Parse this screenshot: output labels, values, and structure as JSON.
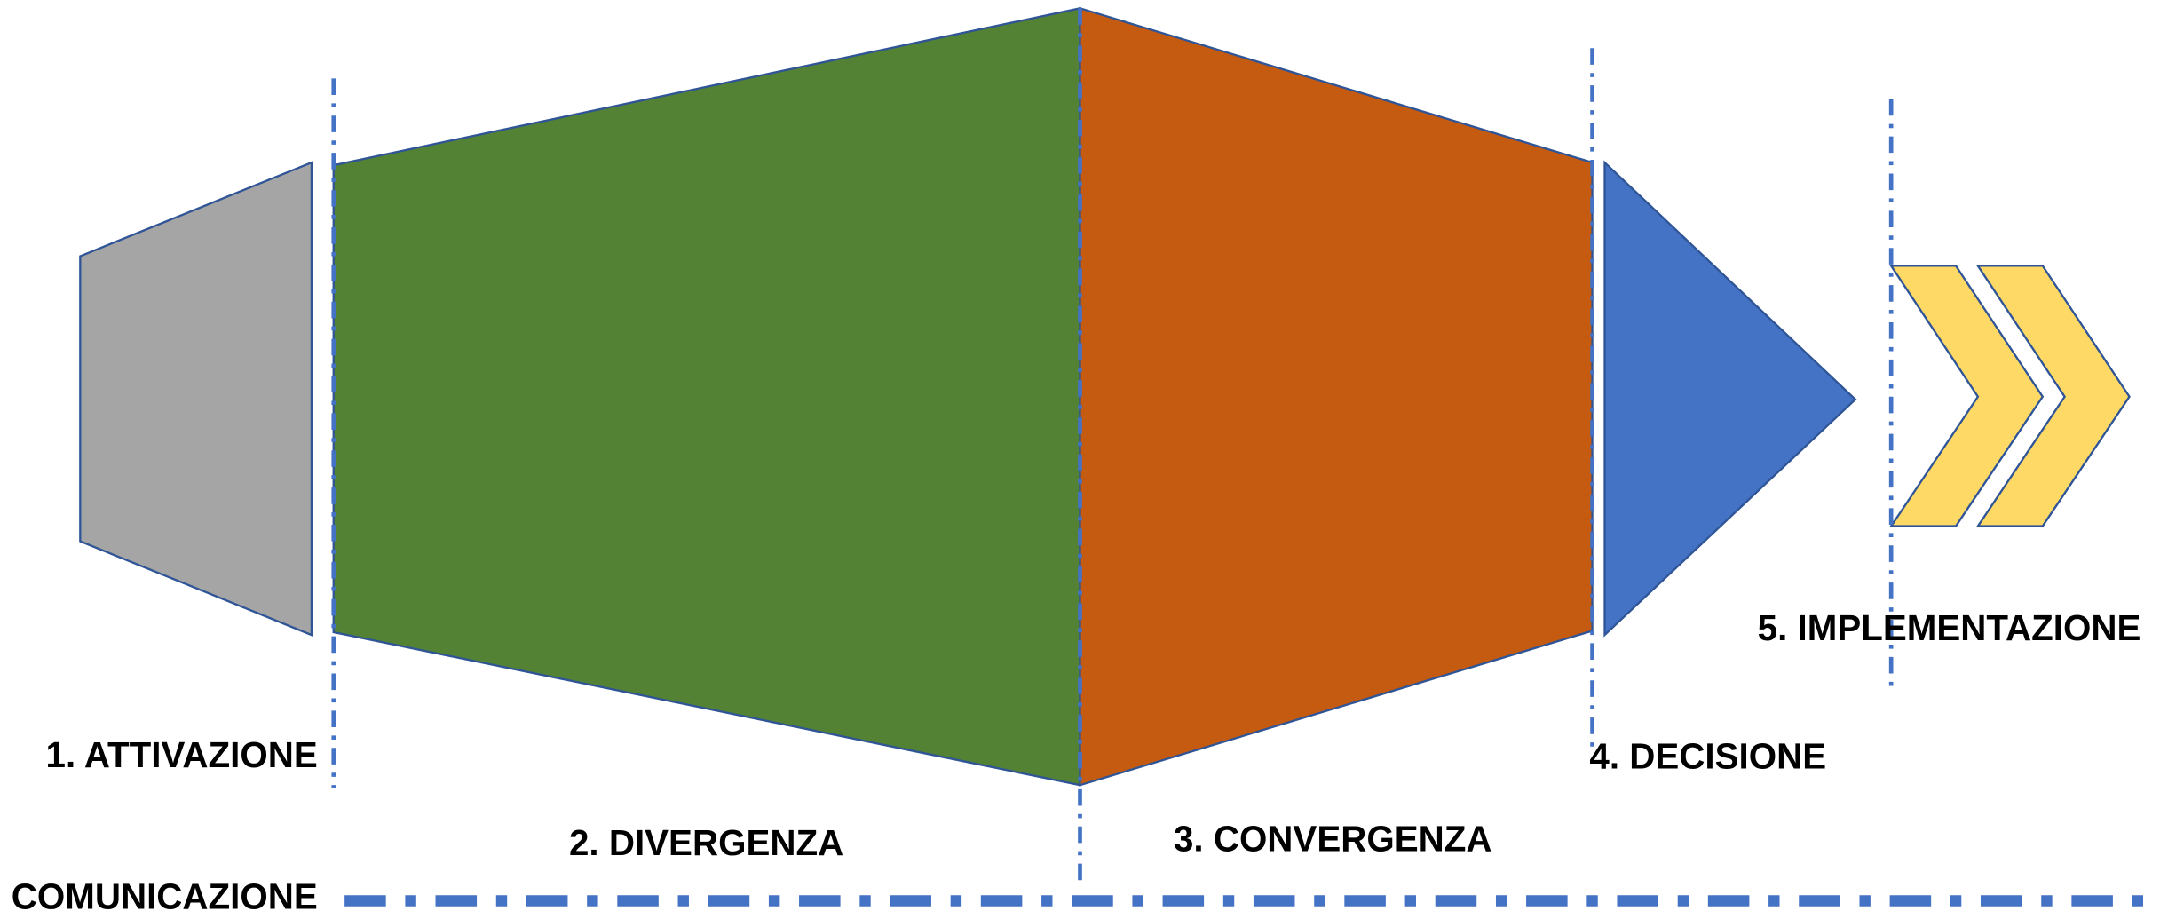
{
  "phases": [
    "1. ATTIVAZIONE",
    "2. DIVERGENZA",
    "3. CONVERGENZA",
    "4. DECISIONE",
    "5. IMPLEMENTAZIONE"
  ],
  "footer": "COMUNICAZIONE"
}
